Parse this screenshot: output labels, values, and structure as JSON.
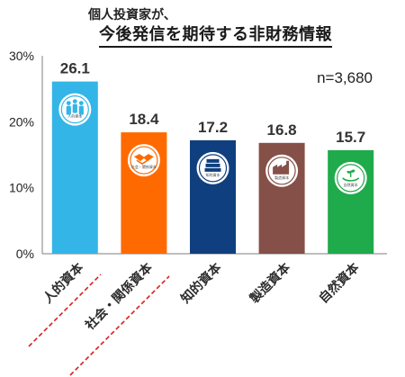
{
  "header": {
    "subtitle": "個人投資家が、",
    "title": "今後発信を期待する非財務情報"
  },
  "chart_data": {
    "type": "bar",
    "categories": [
      "人的資本",
      "社会・関係資本",
      "知的資本",
      "製造資本",
      "自然資本"
    ],
    "values": [
      26.1,
      18.4,
      17.2,
      16.8,
      15.7
    ],
    "value_labels": [
      "26.1",
      "18.4",
      "17.2",
      "16.8",
      "15.7"
    ],
    "colors": [
      "#33B5E8",
      "#FF6A00",
      "#0F3F7E",
      "#855047",
      "#1FAA4B"
    ],
    "icons": [
      "people-icon",
      "handshake-icon",
      "books-icon",
      "factory-icon",
      "plant-hand-icon"
    ],
    "icon_captions": [
      "人的資本",
      "社会・関係資本",
      "知的資本",
      "製造資本",
      "自然資本"
    ],
    "ylim": [
      0,
      30
    ],
    "yticks": [
      "0%",
      "10%",
      "20%",
      "30%"
    ],
    "note": "n=3,680",
    "grid": false
  }
}
